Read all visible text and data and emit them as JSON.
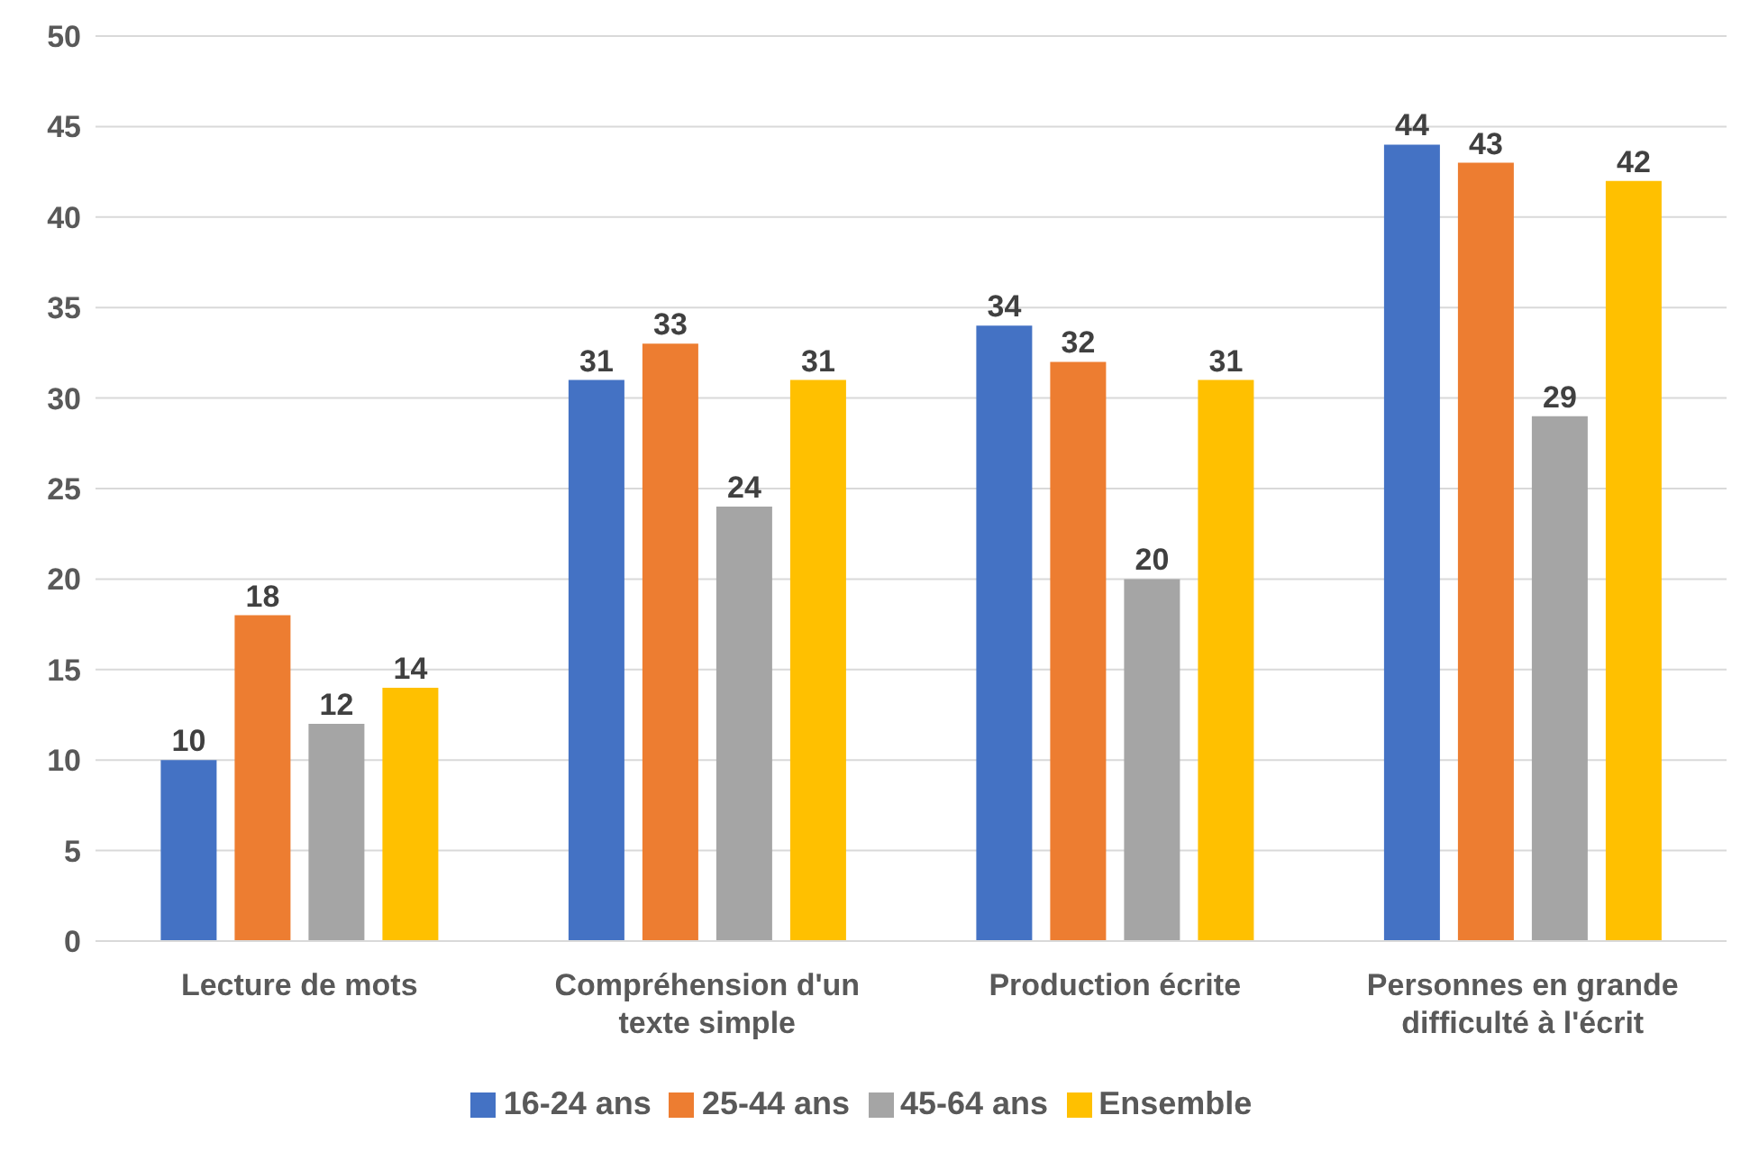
{
  "chart_data": {
    "type": "bar",
    "categories": [
      "Lecture de mots",
      "Compréhension d'un texte simple",
      "Production écrite",
      "Personnes en grande difficulté à l'écrit"
    ],
    "series": [
      {
        "name": "16-24 ans",
        "color": "#4472c4",
        "values": [
          10,
          31,
          34,
          44
        ]
      },
      {
        "name": "25-44 ans",
        "color": "#ed7d31",
        "values": [
          18,
          33,
          32,
          43
        ]
      },
      {
        "name": "45-64 ans",
        "color": "#a5a5a5",
        "values": [
          12,
          24,
          20,
          29
        ]
      },
      {
        "name": "Ensemble",
        "color": "#ffc000",
        "values": [
          14,
          31,
          31,
          42
        ]
      }
    ],
    "ylim": [
      0,
      50
    ],
    "yticks": [
      0,
      5,
      10,
      15,
      20,
      25,
      30,
      35,
      40,
      45,
      50
    ],
    "grid": "y",
    "legend": "bottom",
    "data_labels": true
  }
}
